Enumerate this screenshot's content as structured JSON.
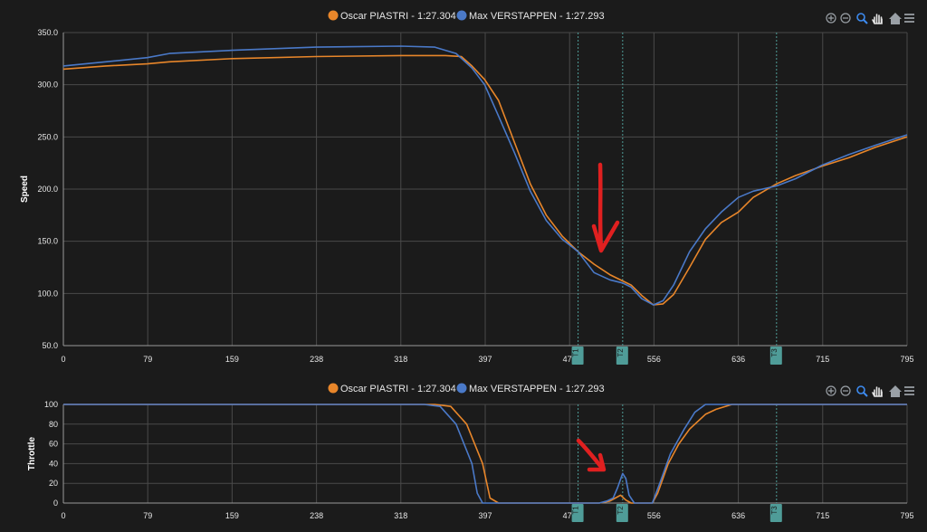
{
  "colors": {
    "piastri": "#e8862a",
    "verstappen": "#4a79c8",
    "grid": "#4a4a4a",
    "marker": "#4f9c98",
    "arrow": "#e02020"
  },
  "toolbar_icons": [
    "zoom-in-icon",
    "zoom-out-icon",
    "zoom-selection-icon",
    "pan-hand-icon",
    "home-icon",
    "menu-icon"
  ],
  "chart_data": [
    {
      "type": "line",
      "ylabel": "Speed",
      "xlim": [
        0,
        795
      ],
      "ylim": [
        50,
        350
      ],
      "x_ticks": [
        "0",
        "79",
        "159",
        "238",
        "318",
        "397",
        "477",
        "556",
        "636",
        "715",
        "795"
      ],
      "y_ticks": [
        "50.0",
        "100.0",
        "150.0",
        "200.0",
        "250.0",
        "300.0",
        "350.0"
      ],
      "corner_markers": [
        {
          "label": "T1",
          "x": 485
        },
        {
          "label": "T2",
          "x": 527
        },
        {
          "label": "T3",
          "x": 672
        }
      ],
      "series": [
        {
          "name": "Oscar PIASTRI - 1:27.304",
          "x": [
            0,
            40,
            79,
            100,
            159,
            238,
            318,
            360,
            375,
            385,
            397,
            410,
            425,
            440,
            455,
            470,
            485,
            500,
            515,
            527,
            535,
            545,
            556,
            565,
            575,
            590,
            605,
            620,
            636,
            650,
            672,
            690,
            715,
            740,
            765,
            795
          ],
          "values": [
            315,
            318,
            320,
            322,
            325,
            327,
            328,
            328,
            327,
            318,
            305,
            285,
            245,
            205,
            175,
            155,
            140,
            128,
            118,
            112,
            108,
            98,
            89,
            90,
            99,
            125,
            152,
            168,
            178,
            192,
            205,
            213,
            222,
            230,
            240,
            250
          ]
        },
        {
          "name": "Max VERSTAPPEN - 1:27.293",
          "x": [
            0,
            40,
            79,
            100,
            159,
            238,
            318,
            350,
            370,
            385,
            397,
            410,
            425,
            440,
            455,
            470,
            485,
            500,
            515,
            527,
            535,
            545,
            556,
            565,
            575,
            590,
            605,
            620,
            636,
            650,
            672,
            690,
            715,
            740,
            765,
            795
          ],
          "values": [
            318,
            322,
            326,
            330,
            333,
            336,
            337,
            336,
            330,
            316,
            300,
            270,
            235,
            198,
            170,
            152,
            140,
            120,
            113,
            110,
            106,
            95,
            89,
            93,
            108,
            140,
            162,
            178,
            192,
            198,
            203,
            210,
            223,
            233,
            242,
            252
          ]
        }
      ]
    },
    {
      "type": "line",
      "ylabel": "Throttle",
      "xlim": [
        0,
        795
      ],
      "ylim": [
        0,
        100
      ],
      "x_ticks": [
        "0",
        "79",
        "159",
        "238",
        "318",
        "397",
        "477",
        "556",
        "636",
        "715",
        "795"
      ],
      "y_ticks": [
        "0",
        "20",
        "40",
        "60",
        "80",
        "100"
      ],
      "corner_markers": [
        {
          "label": "T1",
          "x": 485
        },
        {
          "label": "T2",
          "x": 527
        },
        {
          "label": "T3",
          "x": 672
        }
      ],
      "series": [
        {
          "name": "Oscar PIASTRI - 1:27.304",
          "x": [
            0,
            350,
            365,
            380,
            395,
            402,
            410,
            450,
            490,
            505,
            515,
            520,
            525,
            530,
            535,
            545,
            555,
            560,
            570,
            580,
            590,
            605,
            615,
            630,
            660,
            795
          ],
          "values": [
            100,
            100,
            98,
            80,
            40,
            5,
            0,
            0,
            0,
            0,
            2,
            5,
            8,
            3,
            0,
            0,
            0,
            10,
            40,
            60,
            75,
            90,
            95,
            100,
            100,
            100
          ]
        },
        {
          "name": "Max VERSTAPPEN - 1:27.293",
          "x": [
            0,
            340,
            355,
            370,
            385,
            390,
            395,
            450,
            490,
            505,
            512,
            518,
            522,
            527,
            530,
            533,
            538,
            545,
            555,
            562,
            572,
            585,
            595,
            605,
            620,
            795
          ],
          "values": [
            100,
            100,
            98,
            80,
            40,
            10,
            0,
            0,
            0,
            0,
            2,
            5,
            15,
            30,
            25,
            8,
            0,
            0,
            0,
            20,
            50,
            75,
            92,
            100,
            100,
            100
          ]
        }
      ]
    }
  ]
}
